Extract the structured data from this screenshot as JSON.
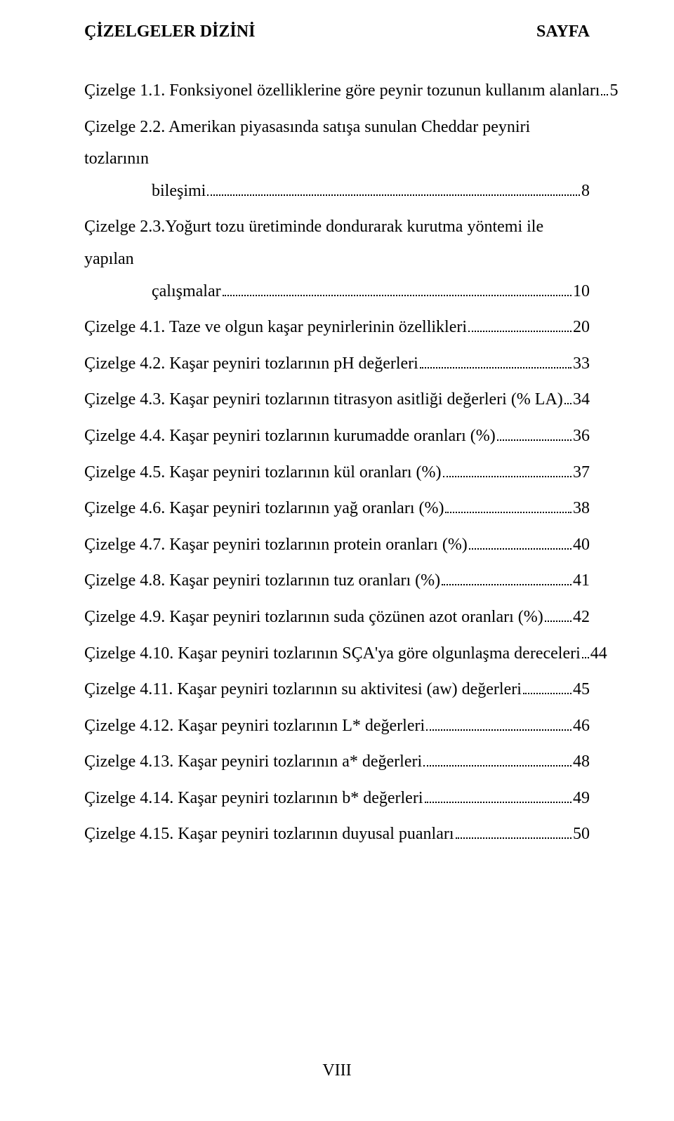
{
  "heading_left": "ÇİZELGELER DİZİNİ",
  "heading_right": "SAYFA",
  "footer": "VIII",
  "entries": [
    {
      "text": "Çizelge 1.1. Fonksiyonel özelliklerine göre peynir tozunun kullanım alanları",
      "page": "5",
      "wrap": false,
      "indent_cont": false
    },
    {
      "text": "Çizelge 2.2. Amerikan piyasasında satışa sunulan Cheddar peyniri tozlarının",
      "cont": "bileşimi",
      "page": "8",
      "wrap": true
    },
    {
      "text": "Çizelge 2.3.Yoğurt tozu üretiminde dondurarak kurutma yöntemi ile yapılan",
      "cont": "çalışmalar",
      "page": "10",
      "wrap": true
    },
    {
      "text": "Çizelge 4.1. Taze ve olgun kaşar peynirlerinin özellikleri",
      "page": "20",
      "wrap": false
    },
    {
      "text": "Çizelge 4.2. Kaşar peyniri tozlarının pH değerleri",
      "page": "33",
      "wrap": false
    },
    {
      "text": "Çizelge 4.3. Kaşar peyniri tozlarının titrasyon asitliği değerleri (% LA)",
      "page": "34",
      "wrap": false
    },
    {
      "text": "Çizelge 4.4. Kaşar peyniri tozlarının kurumadde oranları (%)",
      "page": "36",
      "wrap": false
    },
    {
      "text": "Çizelge 4.5. Kaşar peyniri tozlarının kül oranları (%)",
      "page": "37",
      "wrap": false
    },
    {
      "text": "Çizelge 4.6. Kaşar peyniri tozlarının yağ oranları (%)",
      "page": "38",
      "wrap": false
    },
    {
      "text": "Çizelge 4.7. Kaşar peyniri tozlarının protein oranları (%)",
      "page": "40",
      "wrap": false
    },
    {
      "text": "Çizelge 4.8. Kaşar peyniri tozlarının tuz oranları (%)",
      "page": "41",
      "wrap": false
    },
    {
      "text": "Çizelge 4.9. Kaşar peyniri tozlarının suda çözünen azot oranları (%)",
      "page": "42",
      "wrap": false
    },
    {
      "text": "Çizelge 4.10. Kaşar peyniri tozlarının SÇA'ya göre olgunlaşma dereceleri",
      "page": "44",
      "wrap": false
    },
    {
      "text": "Çizelge 4.11. Kaşar peyniri tozlarının su aktivitesi (aw) değerleri",
      "page": "45",
      "wrap": false
    },
    {
      "text": "Çizelge 4.12. Kaşar peyniri tozlarının L* değerleri",
      "page": "46",
      "wrap": false
    },
    {
      "text": "Çizelge 4.13. Kaşar peyniri tozlarının a* değerleri",
      "page": "48",
      "wrap": false
    },
    {
      "text": "Çizelge 4.14. Kaşar peyniri tozlarının b* değerleri",
      "page": "49",
      "wrap": false
    },
    {
      "text": "Çizelge 4.15. Kaşar peyniri tozlarının duyusal puanları",
      "page": "50",
      "wrap": false
    }
  ]
}
